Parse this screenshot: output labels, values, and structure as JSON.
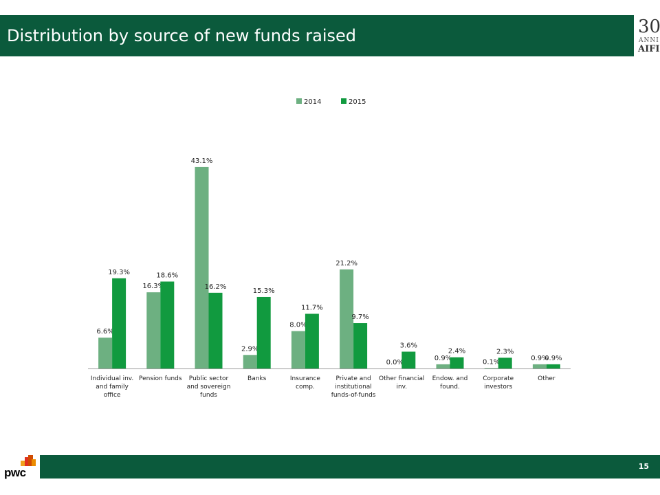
{
  "header": {
    "title": "Distribution by source of new funds raised",
    "logo_number": "30",
    "logo_anni": "ANNI",
    "logo_name": "AIFI"
  },
  "footer": {
    "page_number": "15",
    "brand": "pwc"
  },
  "colors": {
    "header_bg": "#0b5a3c",
    "series_2014": "#6db081",
    "series_2015": "#119a3f"
  },
  "chart_data": {
    "type": "bar",
    "title": "",
    "xlabel": "",
    "ylabel": "",
    "legend_position": "top-center",
    "grid": false,
    "ylim": [
      0,
      50
    ],
    "categories": [
      [
        "Individual inv.",
        "and family",
        "office"
      ],
      [
        "Pension funds"
      ],
      [
        "Public sector",
        "and sovereign",
        "funds"
      ],
      [
        "Banks"
      ],
      [
        "Insurance",
        "comp."
      ],
      [
        "Private and",
        "institutional",
        "funds-of-funds"
      ],
      [
        "Other financial",
        "inv."
      ],
      [
        "Endow. and",
        "found."
      ],
      [
        "Corporate",
        "investors"
      ],
      [
        "Other"
      ]
    ],
    "series": [
      {
        "name": "2014",
        "values": [
          6.6,
          16.3,
          43.1,
          2.9,
          8.0,
          21.2,
          0.0,
          0.9,
          0.1,
          0.9
        ],
        "labels": [
          "6.6%",
          "16.3%",
          "43.1%",
          "2.9%",
          "8.0%",
          "21.2%",
          "0.0%",
          "0.9%",
          "0.1%",
          "0.9%"
        ]
      },
      {
        "name": "2015",
        "values": [
          19.3,
          18.6,
          16.2,
          15.3,
          11.7,
          9.7,
          3.6,
          2.4,
          2.3,
          0.9
        ],
        "labels": [
          "19.3%",
          "18.6%",
          "16.2%",
          "15.3%",
          "11.7%",
          "9.7%",
          "3.6%",
          "2.4%",
          "2.3%",
          "0.9%"
        ]
      }
    ]
  }
}
